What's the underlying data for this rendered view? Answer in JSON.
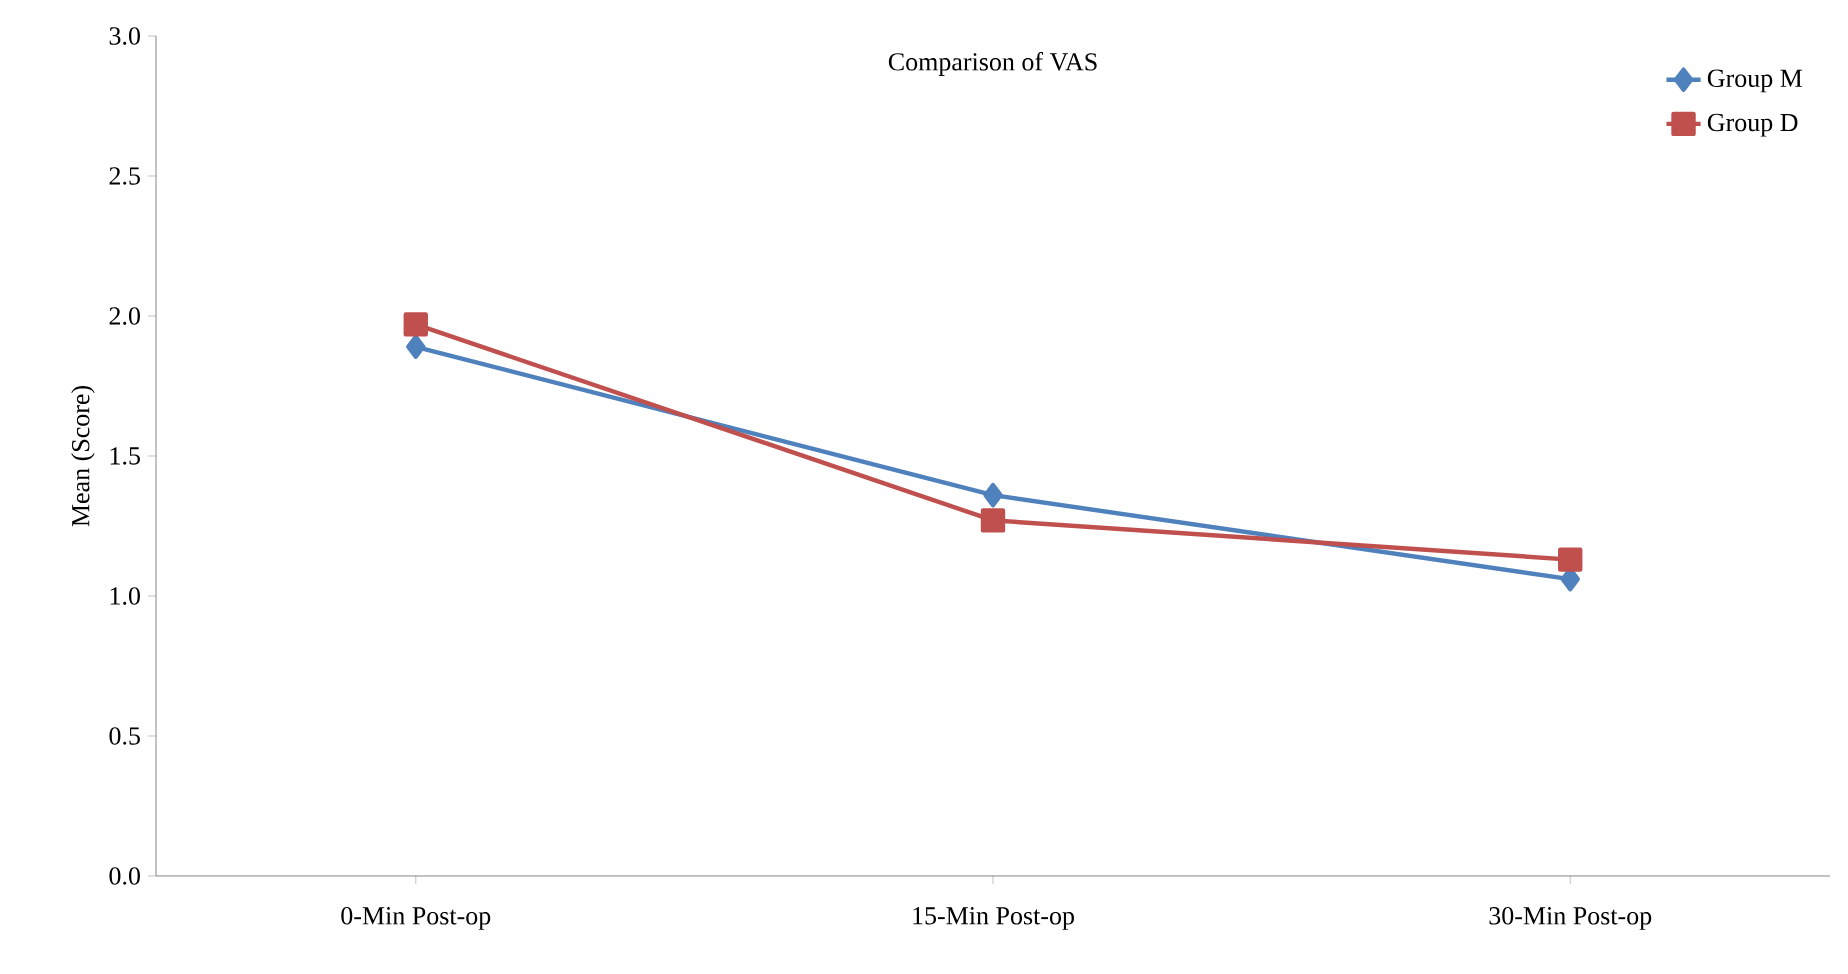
{
  "chart_data": {
    "type": "line",
    "title": "Comparison of VAS",
    "ylabel": "Mean  (Score)",
    "categories": [
      "0-Min Post-op",
      "15-Min Post-op",
      "30-Min Post-op"
    ],
    "series": [
      {
        "name": "Group M",
        "color": "#4f81bd",
        "marker": "diamond",
        "values": [
          1.89,
          1.36,
          1.06
        ]
      },
      {
        "name": "Group D",
        "color": "#c0504d",
        "marker": "square",
        "values": [
          1.97,
          1.27,
          1.13
        ]
      }
    ],
    "ylim": [
      0,
      3
    ],
    "yticks": [
      {
        "value": 0,
        "label": "0.0"
      },
      {
        "value": 0.5,
        "label": "0.5"
      },
      {
        "value": 1,
        "label": "1.0"
      },
      {
        "value": 1.5,
        "label": "1.5"
      },
      {
        "value": 2,
        "label": "2.0"
      },
      {
        "value": 2.5,
        "label": "2.5"
      },
      {
        "value": 3,
        "label": "3.0"
      }
    ],
    "grid": false,
    "legend": "top right",
    "line_style": "solid"
  }
}
